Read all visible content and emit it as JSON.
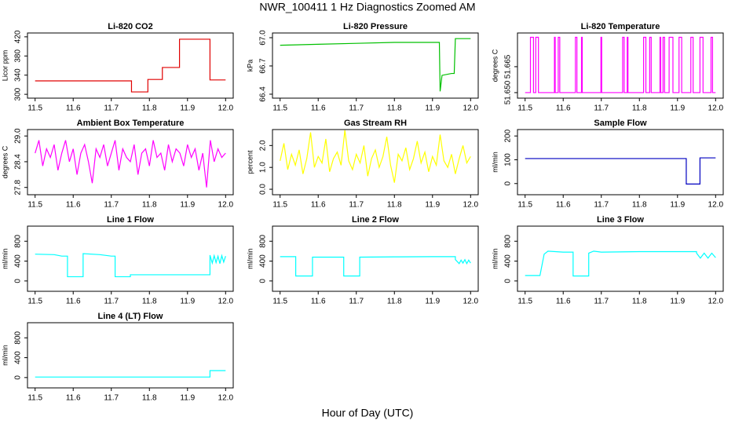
{
  "title": "NWR_100411  1 Hz Diagnostics Zoomed AM",
  "x_label": "Hour of Day (UTC)",
  "chart_data": [
    {
      "type": "line",
      "title": "Li-820 CO2",
      "y_label": "Licor ppm",
      "color": "#e00000",
      "xlim": [
        11.48,
        12.02
      ],
      "xticks": [
        11.5,
        11.6,
        11.7,
        11.8,
        11.9,
        {
          "value": 12,
          "label": "12.0"
        }
      ],
      "ylim": [
        292,
        428
      ],
      "yticks": [
        300,
        340,
        380,
        420
      ],
      "x": [
        11.5,
        11.753,
        11.753,
        11.796,
        11.796,
        11.834,
        11.834,
        11.879,
        11.879,
        11.959,
        11.959,
        12.0
      ],
      "values": [
        328,
        328,
        305,
        305,
        331,
        331,
        356,
        356,
        415,
        415,
        330,
        330
      ]
    },
    {
      "type": "line",
      "title": "Li-820 Pressure",
      "y_label": "kPa",
      "color": "#00c000",
      "xlim": [
        11.48,
        12.02
      ],
      "xticks": [
        11.5,
        11.6,
        11.7,
        11.8,
        11.9,
        {
          "value": 12,
          "label": "12.0"
        }
      ],
      "ylim": [
        66.358,
        67.05
      ],
      "yticks": [
        66.4,
        66.7,
        {
          "value": 67,
          "label": "67.0"
        }
      ],
      "x": [
        11.5,
        11.6,
        11.7,
        11.8,
        11.9,
        11.918,
        11.92,
        11.925,
        11.95,
        11.957,
        11.96,
        12.0
      ],
      "values": [
        66.92,
        66.93,
        66.94,
        66.95,
        66.95,
        66.95,
        66.43,
        66.6,
        66.62,
        66.62,
        66.99,
        66.99
      ]
    },
    {
      "type": "line",
      "title": "Li-820 Temperature",
      "y_label": "degrees C",
      "color": "#ff00ff",
      "xlim": [
        11.48,
        12.02
      ],
      "xticks": [
        11.5,
        11.6,
        11.7,
        11.8,
        11.9,
        {
          "value": 12,
          "label": "12.0"
        }
      ],
      "ylim": [
        51.6468,
        51.6845
      ],
      "yticks": [
        {
          "value": 51.65,
          "label": "51.650"
        },
        {
          "value": 51.665,
          "label": "51.665"
        }
      ],
      "x": [
        11.5,
        11.514,
        11.514,
        11.522,
        11.522,
        11.528,
        11.528,
        11.535,
        11.535,
        11.577,
        11.577,
        11.579,
        11.579,
        11.587,
        11.587,
        11.591,
        11.591,
        11.632,
        11.632,
        11.636,
        11.636,
        11.648,
        11.648,
        11.65,
        11.65,
        11.699,
        11.699,
        11.701,
        11.701,
        11.756,
        11.756,
        11.76,
        11.76,
        11.768,
        11.768,
        11.77,
        11.77,
        11.811,
        11.811,
        11.817,
        11.817,
        11.827,
        11.827,
        11.831,
        11.831,
        11.854,
        11.854,
        11.856,
        11.856,
        11.862,
        11.862,
        11.866,
        11.866,
        11.878,
        11.878,
        11.888,
        11.888,
        11.904,
        11.904,
        11.911,
        11.911,
        11.935,
        11.935,
        11.941,
        11.941,
        11.959,
        11.959,
        11.967,
        11.967,
        11.988,
        11.988,
        11.992,
        11.992,
        12.0
      ],
      "values": [
        51.65,
        51.65,
        51.682,
        51.682,
        51.65,
        51.65,
        51.682,
        51.682,
        51.65,
        51.65,
        51.682,
        51.682,
        51.65,
        51.65,
        51.682,
        51.682,
        51.65,
        51.65,
        51.682,
        51.682,
        51.65,
        51.65,
        51.682,
        51.682,
        51.65,
        51.65,
        51.682,
        51.682,
        51.65,
        51.65,
        51.682,
        51.682,
        51.65,
        51.65,
        51.682,
        51.682,
        51.65,
        51.65,
        51.682,
        51.682,
        51.65,
        51.65,
        51.682,
        51.682,
        51.65,
        51.65,
        51.682,
        51.682,
        51.65,
        51.65,
        51.682,
        51.682,
        51.65,
        51.65,
        51.682,
        51.682,
        51.65,
        51.65,
        51.682,
        51.682,
        51.65,
        51.65,
        51.682,
        51.682,
        51.65,
        51.65,
        51.682,
        51.682,
        51.65,
        51.65,
        51.682,
        51.682,
        51.65,
        51.65
      ]
    },
    {
      "type": "line",
      "title": "Ambient Box Temperature",
      "y_label": "degrees C",
      "color": "#ff00ff",
      "xlim": [
        11.48,
        12.02
      ],
      "xticks": [
        11.5,
        11.6,
        11.7,
        11.8,
        11.9,
        {
          "value": 12,
          "label": "12.0"
        }
      ],
      "ylim": [
        27.63,
        29.15
      ],
      "yticks": [
        27.8,
        28.4,
        {
          "value": 29,
          "label": "29.0"
        }
      ],
      "x": [
        11.5,
        11.51,
        11.52,
        11.53,
        11.54,
        11.55,
        11.56,
        11.57,
        11.58,
        11.59,
        11.6,
        11.61,
        11.62,
        11.63,
        11.64,
        11.65,
        11.66,
        11.67,
        11.68,
        11.69,
        11.7,
        11.71,
        11.72,
        11.73,
        11.74,
        11.75,
        11.76,
        11.77,
        11.78,
        11.79,
        11.8,
        11.81,
        11.82,
        11.83,
        11.84,
        11.85,
        11.86,
        11.87,
        11.88,
        11.89,
        11.9,
        11.91,
        11.92,
        11.93,
        11.94,
        11.95,
        11.96,
        11.97,
        11.98,
        11.99,
        12.0
      ],
      "values": [
        28.6,
        28.9,
        28.3,
        28.7,
        28.5,
        28.8,
        28.2,
        28.6,
        28.9,
        28.4,
        28.7,
        28.1,
        28.6,
        28.8,
        28.4,
        27.9,
        28.7,
        28.5,
        28.8,
        28.3,
        28.6,
        28.9,
        28.2,
        28.7,
        28.5,
        28.4,
        28.8,
        28.1,
        28.6,
        28.7,
        28.3,
        28.9,
        28.5,
        28.6,
        28.2,
        28.8,
        28.4,
        28.7,
        28.6,
        28.3,
        28.8,
        28.5,
        28.7,
        28.2,
        28.6,
        27.8,
        28.9,
        28.4,
        28.7,
        28.5,
        28.6
      ]
    },
    {
      "type": "line",
      "title": "Gas Stream RH",
      "y_label": "percent",
      "color": "#ffff00",
      "xlim": [
        11.48,
        12.02
      ],
      "xticks": [
        11.5,
        11.6,
        11.7,
        11.8,
        11.9,
        {
          "value": 12,
          "label": "12.0"
        }
      ],
      "ylim": [
        -0.25,
        2.73
      ],
      "yticks": [
        {
          "value": 0,
          "label": "0.0"
        },
        {
          "value": 1,
          "label": "1.0"
        },
        {
          "value": 2,
          "label": "2.0"
        }
      ],
      "x": [
        11.5,
        11.51,
        11.52,
        11.53,
        11.54,
        11.55,
        11.56,
        11.57,
        11.58,
        11.59,
        11.6,
        11.61,
        11.62,
        11.63,
        11.64,
        11.65,
        11.66,
        11.67,
        11.68,
        11.69,
        11.7,
        11.71,
        11.72,
        11.73,
        11.74,
        11.75,
        11.76,
        11.77,
        11.78,
        11.79,
        11.8,
        11.81,
        11.82,
        11.83,
        11.84,
        11.85,
        11.86,
        11.87,
        11.88,
        11.89,
        11.9,
        11.91,
        11.92,
        11.93,
        11.94,
        11.95,
        11.96,
        11.97,
        11.98,
        11.99,
        12.0
      ],
      "values": [
        1.3,
        2.1,
        0.9,
        1.6,
        1.1,
        1.8,
        0.7,
        1.4,
        2.6,
        1.0,
        1.5,
        1.2,
        2.3,
        0.8,
        1.4,
        1.7,
        1.1,
        2.7,
        1.3,
        0.9,
        1.6,
        1.2,
        2.0,
        0.6,
        1.4,
        1.8,
        1.0,
        1.5,
        2.4,
        1.1,
        0.3,
        1.6,
        1.3,
        1.9,
        0.9,
        1.4,
        2.2,
        1.2,
        1.7,
        0.8,
        1.5,
        1.1,
        2.5,
        1.3,
        1.0,
        1.6,
        0.7,
        1.4,
        2.0,
        1.2,
        1.5
      ]
    },
    {
      "type": "line",
      "title": "Sample Flow",
      "y_label": "ml/min",
      "color": "#0000c0",
      "xlim": [
        11.48,
        12.02
      ],
      "xticks": [
        11.5,
        11.6,
        11.7,
        11.8,
        11.9,
        {
          "value": 12,
          "label": "12.0"
        }
      ],
      "ylim": [
        -47,
        227
      ],
      "yticks": [
        0,
        100,
        200
      ],
      "x": [
        11.5,
        11.923,
        11.923,
        11.959,
        11.959,
        12.0
      ],
      "values": [
        105,
        105,
        -2,
        -2,
        108,
        108
      ]
    },
    {
      "type": "line",
      "title": "Line 1 Flow",
      "y_label": "ml/min",
      "color": "#00ffff",
      "xlim": [
        11.48,
        12.02
      ],
      "xticks": [
        11.5,
        11.6,
        11.7,
        11.8,
        11.9,
        {
          "value": 12,
          "label": "12.0"
        }
      ],
      "ylim": [
        -208,
        1104
      ],
      "yticks": [
        0,
        400,
        800
      ],
      "x": [
        11.5,
        11.55,
        11.57,
        11.585,
        11.585,
        11.626,
        11.626,
        11.67,
        11.7,
        11.71,
        11.71,
        11.75,
        11.75,
        11.959,
        11.959,
        11.965,
        11.97,
        11.975,
        11.98,
        11.985,
        11.99,
        11.995,
        12.0
      ],
      "values": [
        540,
        530,
        500,
        500,
        85,
        85,
        550,
        530,
        500,
        500,
        85,
        85,
        125,
        125,
        520,
        360,
        510,
        370,
        500,
        350,
        510,
        380,
        500
      ]
    },
    {
      "type": "line",
      "title": "Line 2 Flow",
      "y_label": "ml/min",
      "color": "#00ffff",
      "xlim": [
        11.48,
        12.02
      ],
      "xticks": [
        11.5,
        11.6,
        11.7,
        11.8,
        11.9,
        {
          "value": 12,
          "label": "12.0"
        }
      ],
      "ylim": [
        -208,
        1104
      ],
      "yticks": [
        0,
        400,
        800
      ],
      "x": [
        11.5,
        11.541,
        11.541,
        11.585,
        11.585,
        11.667,
        11.667,
        11.709,
        11.709,
        11.8,
        11.9,
        11.96,
        11.96,
        11.97,
        11.975,
        11.98,
        11.985,
        11.99,
        11.995,
        12.0
      ],
      "values": [
        490,
        490,
        100,
        100,
        480,
        480,
        100,
        100,
        480,
        485,
        490,
        490,
        430,
        350,
        420,
        360,
        430,
        350,
        420,
        360
      ]
    },
    {
      "type": "line",
      "title": "Line 3 Flow",
      "y_label": "ml/min",
      "color": "#00ffff",
      "xlim": [
        11.48,
        12.02
      ],
      "xticks": [
        11.5,
        11.6,
        11.7,
        11.8,
        11.9,
        {
          "value": 12,
          "label": "12.0"
        }
      ],
      "ylim": [
        -208,
        1104
      ],
      "yticks": [
        0,
        400,
        800
      ],
      "x": [
        11.5,
        11.539,
        11.55,
        11.56,
        11.6,
        11.626,
        11.626,
        11.667,
        11.667,
        11.68,
        11.7,
        11.8,
        11.9,
        11.95,
        11.95,
        11.96,
        11.97,
        11.98,
        11.99,
        12.0
      ],
      "values": [
        110,
        110,
        540,
        600,
        580,
        580,
        100,
        100,
        560,
        600,
        580,
        590,
        590,
        590,
        560,
        460,
        560,
        460,
        560,
        470
      ]
    },
    {
      "type": "line",
      "title": "Line 4 (LT) Flow",
      "y_label": "ml/min",
      "color": "#00ffff",
      "xlim": [
        11.48,
        12.02
      ],
      "xticks": [
        11.5,
        11.6,
        11.7,
        11.8,
        11.9,
        {
          "value": 12,
          "label": "12.0"
        }
      ],
      "ylim": [
        -208,
        1104
      ],
      "yticks": [
        0,
        400,
        800
      ],
      "x": [
        11.5,
        11.959,
        11.959,
        12.0
      ],
      "values": [
        10,
        10,
        140,
        140
      ]
    }
  ]
}
